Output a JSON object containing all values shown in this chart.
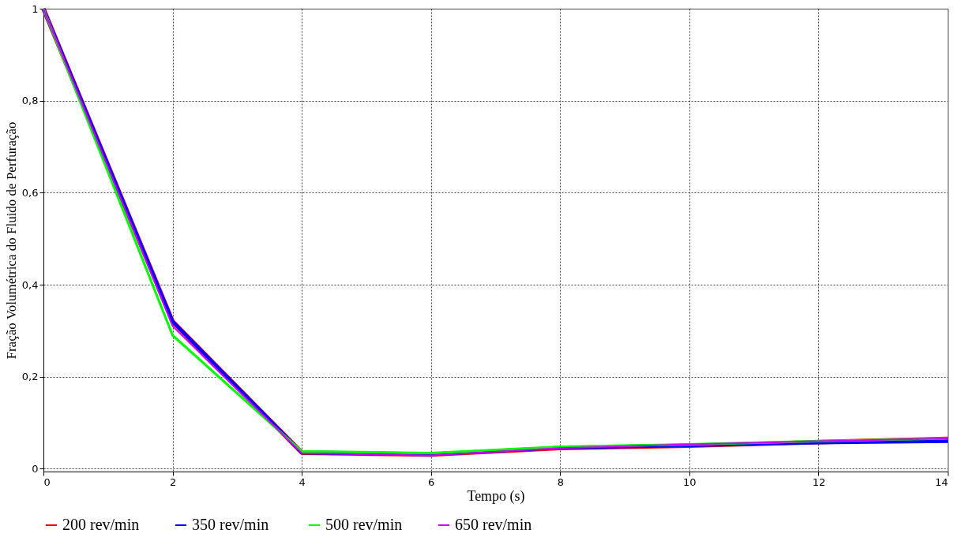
{
  "chart_data": {
    "type": "line",
    "xlabel": "Tempo (s)",
    "ylabel": "Fração  Volumétrica  do Fluido de Perfuração",
    "x": [
      0,
      2,
      4,
      6,
      8,
      10,
      12,
      14
    ],
    "series": [
      {
        "name": "200 rev/min",
        "color": "#ff0000",
        "values": [
          1,
          0.32,
          0.035,
          0.031,
          0.045,
          0.05,
          0.058,
          0.065
        ]
      },
      {
        "name": "350  rev/min",
        "color": "#0000ff",
        "values": [
          1,
          0.32,
          0.035,
          0.031,
          0.046,
          0.051,
          0.057,
          0.06
        ]
      },
      {
        "name": "500 rev/min",
        "color": "#00ff00",
        "values": [
          1,
          0.29,
          0.038,
          0.034,
          0.048,
          0.053,
          0.06,
          0.066
        ]
      },
      {
        "name": "650 rev/min",
        "color": "#cc00ff",
        "values": [
          1,
          0.31,
          0.034,
          0.029,
          0.045,
          0.053,
          0.06,
          0.066
        ]
      }
    ],
    "xlim": [
      0,
      14
    ],
    "xticks": [
      0,
      2,
      4,
      6,
      8,
      10,
      12,
      14
    ],
    "ylim": [
      -0.006,
      1
    ],
    "yticks": [
      0,
      {
        "value": 0.2,
        "label": "0,2"
      },
      {
        "value": 0.4,
        "label": "0,4"
      },
      {
        "value": 0.6,
        "label": "0,6"
      },
      {
        "value": 0.8,
        "label": "0,8"
      },
      1
    ],
    "grid": true,
    "legend": "bottom",
    "line_style": "solid",
    "marker": "none"
  }
}
